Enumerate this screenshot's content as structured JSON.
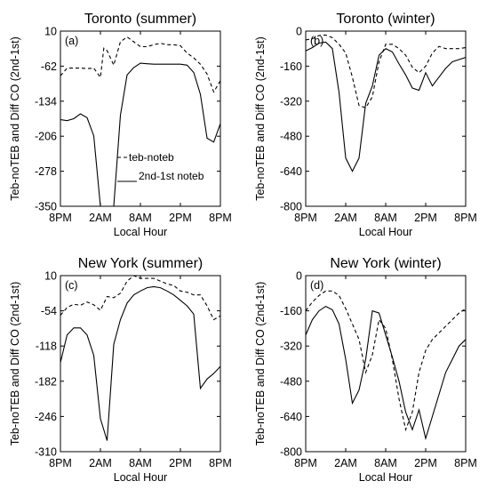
{
  "chart_data": [
    {
      "type": "line",
      "panel_label": "(a)",
      "title": "Toronto (summer)",
      "xlabel": "Local Hour",
      "ylabel": "Teb-noTEB and Diff CO (2nd-1st)",
      "x_tick_labels": [
        "8PM",
        "2AM",
        "8AM",
        "2PM",
        "8PM"
      ],
      "y_ticks": [
        10,
        -62,
        -134,
        -206,
        -278,
        -350
      ],
      "ylim": [
        -350,
        10
      ],
      "xlim": [
        0,
        24
      ],
      "legend": {
        "position": "center-left",
        "entries": [
          "teb-noteb",
          "2nd-1st noteb"
        ]
      },
      "series": [
        {
          "name": "teb-noteb",
          "style": "dashed",
          "x": [
            0,
            1,
            2,
            3,
            4,
            5,
            6,
            6.5,
            7,
            8,
            9,
            10,
            11,
            12,
            13,
            14,
            15,
            16,
            17,
            18,
            19,
            20,
            21,
            22,
            23,
            24
          ],
          "values": [
            -82,
            -66,
            -66,
            -66,
            -67,
            -66,
            -85,
            -25,
            -30,
            -60,
            -12,
            -2,
            -12,
            -22,
            -22,
            -18,
            -15,
            -18,
            -18,
            -20,
            -35,
            -45,
            -58,
            -78,
            -115,
            -92
          ]
        },
        {
          "name": "2nd-1st noteb",
          "style": "solid",
          "x": [
            0,
            1,
            2,
            3,
            4,
            5,
            6,
            7,
            8,
            9,
            10,
            11,
            12,
            13,
            14,
            15,
            16,
            17,
            18,
            19,
            20,
            21,
            22,
            23,
            24
          ],
          "values": [
            -172,
            -174,
            -170,
            -160,
            -168,
            -205,
            -350,
            -350,
            -350,
            -163,
            -80,
            -65,
            -56,
            -57,
            -58,
            -58,
            -58,
            -58,
            -58,
            -60,
            -75,
            -120,
            -210,
            -218,
            -180
          ]
        }
      ]
    },
    {
      "type": "line",
      "panel_label": "(b)",
      "title": "Toronto (winter)",
      "xlabel": "Local Hour",
      "ylabel": "Teb-noTEB and Diff CO (2nd-1st)",
      "x_tick_labels": [
        "8PM",
        "2AM",
        "8AM",
        "2PM",
        "8PM"
      ],
      "y_ticks": [
        0,
        -160,
        -320,
        -480,
        -640,
        -800
      ],
      "ylim": [
        -800,
        0
      ],
      "xlim": [
        0,
        24
      ],
      "series": [
        {
          "name": "teb-noteb",
          "style": "dashed",
          "x": [
            0,
            1,
            2,
            3,
            4,
            5,
            6,
            7,
            8,
            9,
            10,
            11,
            12,
            13,
            14,
            15,
            16,
            17,
            18,
            19,
            20,
            21,
            22,
            23,
            24
          ],
          "values": [
            -40,
            -35,
            -20,
            -18,
            -30,
            -60,
            -100,
            -210,
            -340,
            -350,
            -300,
            -140,
            -60,
            -60,
            -80,
            -110,
            -165,
            -190,
            -160,
            -100,
            -70,
            -80,
            -80,
            -80,
            -75
          ]
        },
        {
          "name": "2nd-1st noteb",
          "style": "solid",
          "x": [
            0,
            1,
            2,
            3,
            4,
            5,
            6,
            7,
            8,
            9,
            10,
            11,
            12,
            13,
            14,
            15,
            16,
            17,
            18,
            19,
            20,
            21,
            22,
            23,
            24
          ],
          "values": [
            -90,
            -75,
            -55,
            -50,
            -80,
            -280,
            -580,
            -640,
            -580,
            -330,
            -250,
            -110,
            -80,
            -95,
            -150,
            -200,
            -260,
            -270,
            -190,
            -250,
            -210,
            -170,
            -140,
            -130,
            -120
          ]
        }
      ]
    },
    {
      "type": "line",
      "panel_label": "(c)",
      "title": "New York (summer)",
      "xlabel": "Local Hour",
      "ylabel": "Teb-noTEB and Diff CO (2nd-1st)",
      "x_tick_labels": [
        "8PM",
        "2AM",
        "8AM",
        "2PM",
        "8PM"
      ],
      "y_ticks": [
        10,
        -54,
        -118,
        -182,
        -246,
        -310
      ],
      "ylim": [
        -310,
        10
      ],
      "xlim": [
        0,
        24
      ],
      "series": [
        {
          "name": "teb-noteb",
          "style": "dashed",
          "x": [
            0,
            1,
            2,
            3,
            4,
            5,
            6,
            7,
            8,
            9,
            10,
            11,
            12,
            13,
            14,
            15,
            16,
            17,
            18,
            19,
            20,
            21,
            22,
            23,
            24
          ],
          "values": [
            -62,
            -48,
            -42,
            -44,
            -38,
            -43,
            -53,
            -28,
            -30,
            -22,
            0,
            10,
            5,
            5,
            5,
            0,
            -5,
            -8,
            -18,
            -20,
            -25,
            -25,
            -45,
            -70,
            -63
          ]
        },
        {
          "name": "2nd-1st noteb",
          "style": "solid",
          "x": [
            0,
            1,
            2,
            3,
            4,
            5,
            6,
            7,
            8,
            9,
            10,
            11,
            12,
            13,
            14,
            15,
            16,
            17,
            18,
            19,
            20,
            21,
            22,
            23,
            24
          ],
          "values": [
            -148,
            -98,
            -85,
            -85,
            -98,
            -135,
            -250,
            -290,
            -115,
            -70,
            -40,
            -25,
            -18,
            -12,
            -10,
            -12,
            -18,
            -25,
            -35,
            -45,
            -60,
            -195,
            -178,
            -168,
            -155
          ]
        }
      ]
    },
    {
      "type": "line",
      "panel_label": "(d)",
      "title": "New York (winter)",
      "xlabel": "Local Hour",
      "ylabel": "Teb-noTEB and Diff CO (2nd-1st)",
      "x_tick_labels": [
        "8PM",
        "2AM",
        "8AM",
        "2PM",
        "8PM"
      ],
      "y_ticks": [
        0,
        -160,
        -320,
        -480,
        -640,
        -800
      ],
      "ylim": [
        -800,
        0
      ],
      "xlim": [
        0,
        24
      ],
      "series": [
        {
          "name": "teb-noteb",
          "style": "dashed",
          "x": [
            0,
            1,
            2,
            3,
            4,
            5,
            6,
            7,
            8,
            9,
            10,
            11,
            12,
            13,
            14,
            15,
            16,
            17,
            18,
            19,
            20,
            21,
            22,
            23,
            24
          ],
          "values": [
            -160,
            -120,
            -90,
            -70,
            -70,
            -90,
            -150,
            -220,
            -290,
            -440,
            -360,
            -200,
            -240,
            -380,
            -560,
            -700,
            -620,
            -440,
            -340,
            -290,
            -260,
            -230,
            -200,
            -170,
            -150
          ]
        },
        {
          "name": "2nd-1st noteb",
          "style": "solid",
          "x": [
            0,
            1,
            2,
            3,
            4,
            5,
            6,
            7,
            8,
            9,
            10,
            11,
            12,
            13,
            14,
            15,
            16,
            17,
            18,
            19,
            20,
            21,
            22,
            23,
            24
          ],
          "values": [
            -270,
            -200,
            -160,
            -140,
            -155,
            -220,
            -380,
            -580,
            -520,
            -380,
            -160,
            -170,
            -270,
            -370,
            -480,
            -620,
            -700,
            -610,
            -740,
            -640,
            -540,
            -440,
            -380,
            -320,
            -290
          ]
        }
      ]
    }
  ]
}
